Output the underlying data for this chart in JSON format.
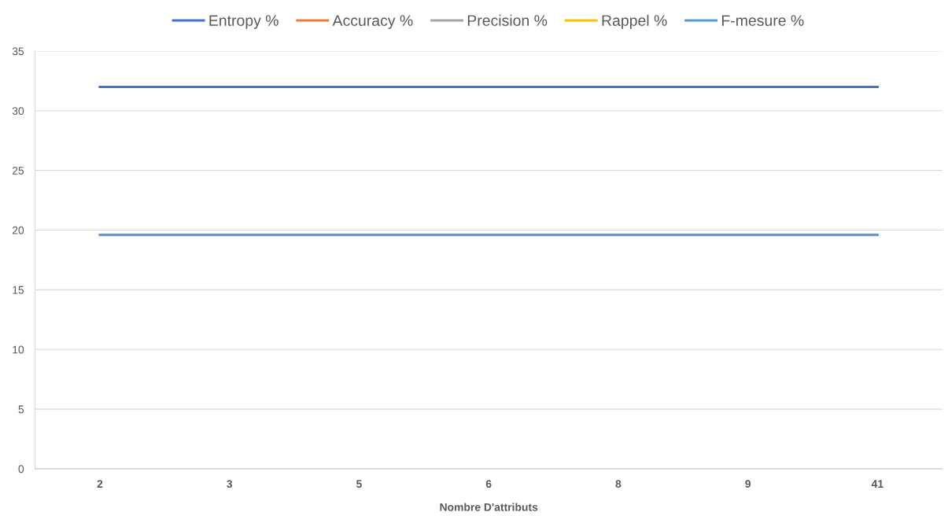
{
  "chart_data": {
    "type": "line",
    "xlabel": "Nombre D'attributs",
    "categories": [
      "2",
      "3",
      "5",
      "6",
      "8",
      "9",
      "41"
    ],
    "series": [
      {
        "name": "Entropy %",
        "color": "#4472c4",
        "values": [
          32,
          32,
          32,
          32,
          32,
          32,
          32
        ]
      },
      {
        "name": "Accuracy %",
        "color": "#ed7d31",
        "values": [
          null,
          null,
          null,
          null,
          null,
          null,
          null
        ]
      },
      {
        "name": "Precision %",
        "color": "#a5a5a5",
        "values": [
          null,
          null,
          null,
          null,
          null,
          null,
          null
        ]
      },
      {
        "name": "Rappel %",
        "color": "#ffc000",
        "values": [
          null,
          null,
          null,
          null,
          null,
          null,
          null
        ]
      },
      {
        "name": "F-mesure %",
        "color": "#5b9bd5",
        "values": [
          19.6,
          19.6,
          19.6,
          19.6,
          19.6,
          19.6,
          19.6
        ]
      }
    ],
    "ylim": [
      0,
      35
    ],
    "yticks": [
      0,
      5,
      10,
      15,
      20,
      25,
      30,
      35
    ],
    "grid": "y",
    "legend": "top",
    "marker": "none",
    "line_style": "solid"
  }
}
